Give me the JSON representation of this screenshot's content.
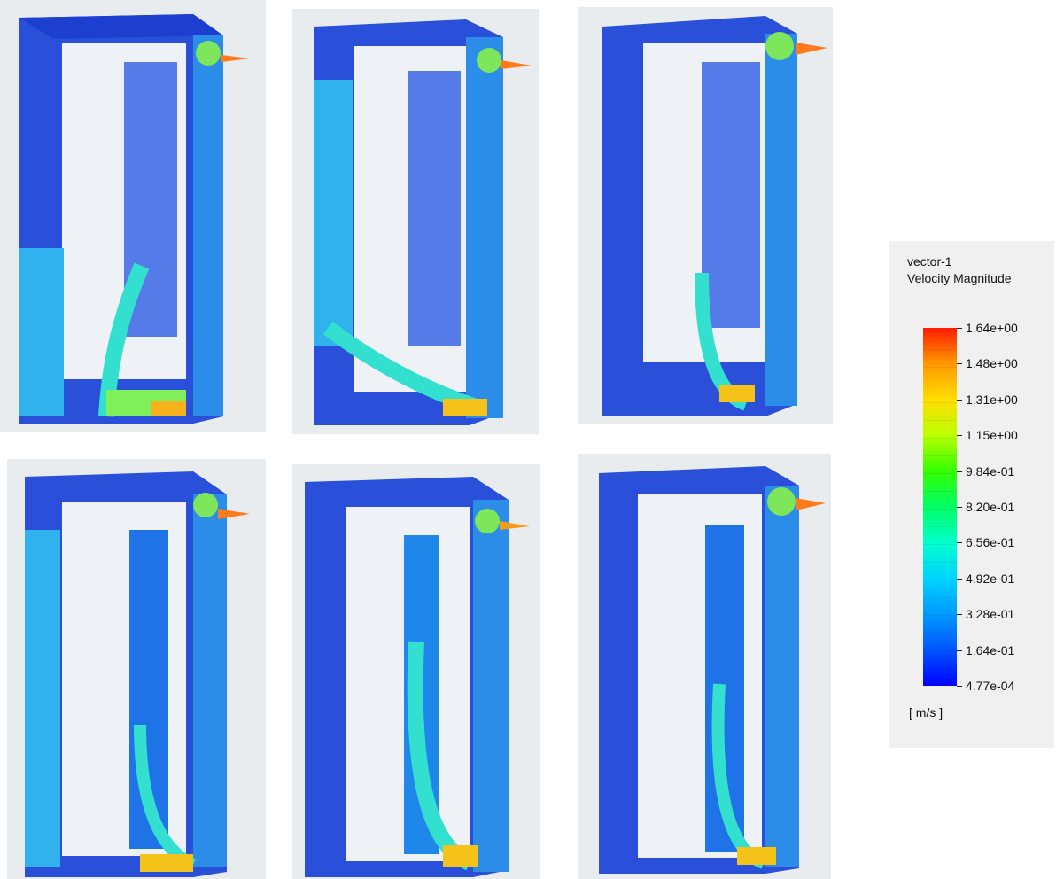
{
  "legend": {
    "title_line1": "vector-1",
    "title_line2": "Velocity Magnitude",
    "labels": [
      "1.64e+00",
      "1.48e+00",
      "1.31e+00",
      "1.15e+00",
      "9.84e-01",
      "8.20e-01",
      "6.56e-01",
      "4.92e-01",
      "3.28e-01",
      "1.64e-01",
      "4.77e-04"
    ],
    "unit": "[ m/s ]",
    "color_max": "#ff1a00",
    "color_min": "#0000ff"
  },
  "panels": [
    {
      "id": "p1",
      "image": "velocity-vector-plot-1"
    },
    {
      "id": "p2",
      "image": "velocity-vector-plot-2"
    },
    {
      "id": "p3",
      "image": "velocity-vector-plot-3"
    },
    {
      "id": "p4",
      "image": "velocity-vector-plot-4"
    },
    {
      "id": "p5",
      "image": "velocity-vector-plot-5"
    },
    {
      "id": "p6",
      "image": "velocity-vector-plot-6"
    }
  ]
}
